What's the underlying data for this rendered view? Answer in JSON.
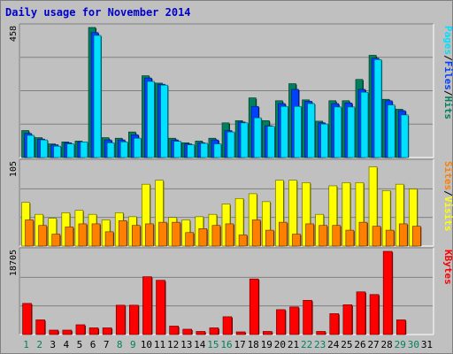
{
  "title": "Daily usage for November 2014",
  "colors": {
    "background": "#c0c0c0",
    "title": "#0000cc",
    "hits": "#00805c",
    "files": "#0040ff",
    "pages": "#00e0ff",
    "visits": "#ffff00",
    "sites": "#ff8000",
    "kbytes": "#ff0000",
    "weekend_day": "#00805c",
    "weekday": "#000000"
  },
  "chart_data": [
    {
      "type": "bar",
      "name": "hits-files-pages",
      "ymax_label": "458",
      "ylim": [
        0,
        458
      ],
      "legend": [
        {
          "label": "Hits",
          "color": "#00805c"
        },
        {
          "label": "/",
          "color": "#000000"
        },
        {
          "label": "Files",
          "color": "#0040ff"
        },
        {
          "label": "/",
          "color": "#000000"
        },
        {
          "label": "Pages",
          "color": "#00e0ff"
        }
      ],
      "categories": [
        "1",
        "2",
        "3",
        "4",
        "5",
        "6",
        "7",
        "8",
        "9",
        "10",
        "11",
        "12",
        "13",
        "14",
        "15",
        "16",
        "17",
        "18",
        "19",
        "20",
        "21",
        "22",
        "23",
        "24",
        "25",
        "26",
        "27",
        "28",
        "29",
        "30",
        "31"
      ],
      "series": [
        {
          "name": "Hits",
          "values": [
            95,
            70,
            48,
            55,
            58,
            458,
            70,
            68,
            90,
            288,
            262,
            68,
            52,
            58,
            68,
            122,
            130,
            210,
            130,
            200,
            260,
            203,
            128,
            200,
            200,
            275,
            360,
            205,
            170,
            0,
            0
          ]
        },
        {
          "name": "Files",
          "values": [
            85,
            65,
            45,
            52,
            55,
            440,
            62,
            62,
            80,
            280,
            258,
            62,
            48,
            52,
            62,
            95,
            125,
            180,
            112,
            190,
            240,
            198,
            122,
            190,
            192,
            240,
            350,
            200,
            165,
            0,
            0
          ]
        },
        {
          "name": "Pages",
          "values": [
            78,
            62,
            40,
            48,
            55,
            430,
            52,
            55,
            68,
            268,
            255,
            57,
            45,
            50,
            48,
            90,
            122,
            140,
            110,
            180,
            180,
            190,
            118,
            178,
            178,
            230,
            345,
            185,
            150,
            0,
            0
          ]
        }
      ]
    },
    {
      "type": "bar",
      "name": "visits-sites",
      "ymax_label": "105",
      "ylim": [
        0,
        105
      ],
      "legend": [
        {
          "label": "Visits",
          "color": "#ffff00"
        },
        {
          "label": "/",
          "color": "#000000"
        },
        {
          "label": "Sites",
          "color": "#ff8000"
        }
      ],
      "categories": [
        "1",
        "2",
        "3",
        "4",
        "5",
        "6",
        "7",
        "8",
        "9",
        "10",
        "11",
        "12",
        "13",
        "14",
        "15",
        "16",
        "17",
        "18",
        "19",
        "20",
        "21",
        "22",
        "23",
        "24",
        "25",
        "26",
        "27",
        "28",
        "29",
        "30",
        "31"
      ],
      "series": [
        {
          "name": "Visits",
          "values": [
            55,
            40,
            35,
            42,
            45,
            40,
            33,
            42,
            37,
            78,
            83,
            36,
            33,
            37,
            40,
            53,
            60,
            66,
            56,
            83,
            83,
            80,
            40,
            76,
            80,
            80,
            100,
            70,
            78,
            72,
            0
          ]
        },
        {
          "name": "Sites",
          "values": [
            33,
            26,
            15,
            24,
            28,
            28,
            18,
            32,
            26,
            28,
            30,
            30,
            17,
            22,
            26,
            28,
            14,
            33,
            20,
            30,
            15,
            28,
            26,
            26,
            20,
            30,
            25,
            20,
            28,
            25,
            0
          ]
        }
      ]
    },
    {
      "type": "bar",
      "name": "kbytes",
      "ymax_label": "18705",
      "ylim": [
        0,
        18705
      ],
      "legend": [
        {
          "label": "KBytes",
          "color": "#ff0000"
        }
      ],
      "categories": [
        "1",
        "2",
        "3",
        "4",
        "5",
        "6",
        "7",
        "8",
        "9",
        "10",
        "11",
        "12",
        "13",
        "14",
        "15",
        "16",
        "17",
        "18",
        "19",
        "20",
        "21",
        "22",
        "23",
        "24",
        "25",
        "26",
        "27",
        "28",
        "29",
        "30",
        "31"
      ],
      "series": [
        {
          "name": "KBytes",
          "values": [
            7000,
            3300,
            1000,
            1000,
            2200,
            1500,
            1500,
            6600,
            6600,
            13000,
            12200,
            1900,
            1200,
            700,
            1500,
            4000,
            600,
            12500,
            700,
            5600,
            6200,
            7700,
            700,
            4700,
            6700,
            9600,
            9000,
            18705,
            3300,
            0,
            0
          ]
        }
      ]
    }
  ],
  "x_axis": {
    "days": [
      "1",
      "2",
      "3",
      "4",
      "5",
      "6",
      "7",
      "8",
      "9",
      "10",
      "11",
      "12",
      "13",
      "14",
      "15",
      "16",
      "17",
      "18",
      "19",
      "20",
      "21",
      "22",
      "23",
      "24",
      "25",
      "26",
      "27",
      "28",
      "29",
      "30",
      "31"
    ],
    "weekend_days": [
      "1",
      "2",
      "8",
      "9",
      "15",
      "16",
      "22",
      "23",
      "29",
      "30"
    ]
  }
}
